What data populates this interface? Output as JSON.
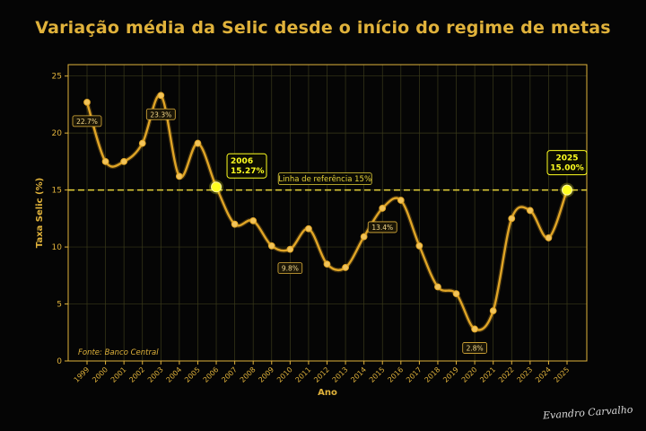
{
  "chart_data": {
    "type": "line",
    "title": "Variação média da Selic desde o início do regime de metas",
    "xlabel": "Ano",
    "ylabel": "Taxa Selic (%)",
    "ylim": [
      0,
      26
    ],
    "yticks": [
      0,
      5,
      10,
      15,
      20,
      25
    ],
    "grid": true,
    "source": "Fonte: Banco Central",
    "x": [
      1999,
      2000,
      2001,
      2002,
      2003,
      2004,
      2005,
      2006,
      2007,
      2008,
      2009,
      2010,
      2011,
      2012,
      2013,
      2014,
      2015,
      2016,
      2017,
      2018,
      2019,
      2020,
      2021,
      2022,
      2023,
      2024,
      2025
    ],
    "series": [
      {
        "name": "",
        "values": [
          22.7,
          17.5,
          17.5,
          19.1,
          23.3,
          16.2,
          19.1,
          15.27,
          12.0,
          12.3,
          10.1,
          9.8,
          11.6,
          8.5,
          8.2,
          10.9,
          13.4,
          14.1,
          10.1,
          6.5,
          5.9,
          2.8,
          4.4,
          12.5,
          13.2,
          10.8,
          15.0
        ]
      }
    ],
    "reference_line": {
      "value": 15,
      "label": "Linha de referência 15%"
    },
    "point_labels": [
      {
        "year": 1999,
        "text": "22.7%"
      },
      {
        "year": 2003,
        "text": "23.3%"
      },
      {
        "year": 2010,
        "text": "9.8%"
      },
      {
        "year": 2015,
        "text": "13.4%"
      },
      {
        "year": 2020,
        "text": "2.8%"
      }
    ],
    "highlights": [
      {
        "year": 2006,
        "line1": "2006",
        "line2": "15.27%"
      },
      {
        "year": 2025,
        "line1": "2025",
        "line2": "15.00%"
      }
    ],
    "colors": {
      "line": "#e0a526",
      "accent": "#e0b23b",
      "highlight": "#ffff20",
      "reference": "#e6d23a",
      "grid": "#3a3a1a",
      "background": "#050505"
    }
  },
  "signature_text": "Evandro Carvalho"
}
